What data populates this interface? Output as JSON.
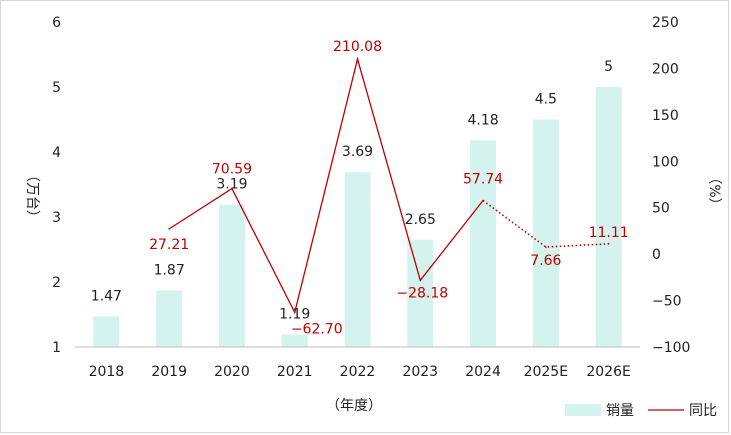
{
  "chart_data": {
    "type": "bar+line",
    "categories": [
      "2018",
      "2019",
      "2020",
      "2021",
      "2022",
      "2023",
      "2024",
      "2025E",
      "2026E"
    ],
    "series": [
      {
        "name": "销量",
        "type": "bar",
        "axis": "left",
        "values": [
          1.47,
          1.87,
          3.19,
          1.19,
          3.69,
          2.65,
          4.18,
          4.5,
          5
        ],
        "labels": [
          "1.47",
          "1.87",
          "3.19",
          "1.19",
          "3.69",
          "2.65",
          "4.18",
          "4.5",
          "5"
        ]
      },
      {
        "name": "同比",
        "type": "line",
        "axis": "right",
        "values": [
          null,
          27.21,
          70.59,
          -62.7,
          210.08,
          -28.18,
          57.74,
          7.66,
          11.11
        ],
        "labels": [
          "",
          "27.21",
          "70.59",
          "-62.70",
          "210.08",
          "-28.18",
          "57.74",
          "7.66",
          "11.11"
        ],
        "dotted_from_index": 6
      }
    ],
    "xlabel": "（年度）",
    "ylabel_left": "（万台）",
    "ylabel_right": "（%）",
    "ylim_left": [
      1,
      6
    ],
    "yticks_left": [
      "1",
      "2",
      "3",
      "4",
      "5",
      "6"
    ],
    "ylim_right": [
      -100,
      250
    ],
    "yticks_right": [
      "-100",
      "-50",
      "0",
      "50",
      "100",
      "150",
      "200",
      "250"
    ],
    "grid": false,
    "legend_position": "bottom-right",
    "colors": {
      "bar": "#d4f2ee",
      "line": "#c00000"
    }
  }
}
